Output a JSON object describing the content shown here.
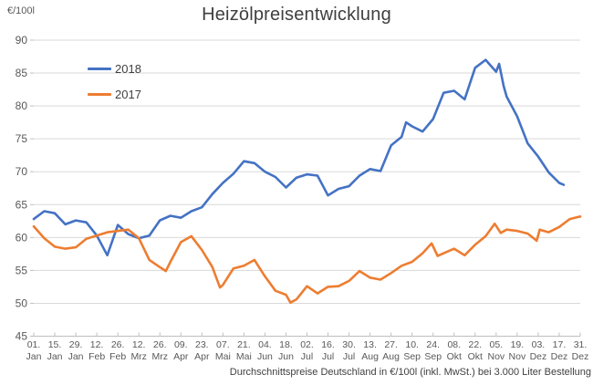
{
  "title": "Heizölpreisentwicklung",
  "axis_unit_label": "€/100l",
  "caption": "Durchschnittspreise Deutschland in €/100l (inkl. MwSt.) bei 3.000 Liter Bestellung",
  "colors": {
    "series_2018": "#4472C4",
    "series_2017": "#ED7D31",
    "grid": "#D9D9D9",
    "axis": "#BFBFBF",
    "tick_text": "#595959",
    "title_text": "#3F3F3F"
  },
  "chart_data": {
    "type": "line",
    "title": "Heizölpreisentwicklung",
    "ylabel": "€/100l",
    "xlabel": "",
    "ylim": [
      45,
      90
    ],
    "y_tick_step": 5,
    "y_tick_labels": [
      "45",
      "50",
      "55",
      "60",
      "65",
      "70",
      "75",
      "80",
      "85",
      "90"
    ],
    "x_domain_days": [
      0,
      364
    ],
    "x_tick_interval_days": 14,
    "x_tick_labels": [
      {
        "day": "01.",
        "month": "Jan"
      },
      {
        "day": "15.",
        "month": "Jan"
      },
      {
        "day": "29.",
        "month": "Jan"
      },
      {
        "day": "12.",
        "month": "Feb"
      },
      {
        "day": "26.",
        "month": "Feb"
      },
      {
        "day": "12.",
        "month": "Mrz"
      },
      {
        "day": "26.",
        "month": "Mrz"
      },
      {
        "day": "09.",
        "month": "Apr"
      },
      {
        "day": "23.",
        "month": "Apr"
      },
      {
        "day": "07.",
        "month": "Mai"
      },
      {
        "day": "21.",
        "month": "Mai"
      },
      {
        "day": "04.",
        "month": "Jun"
      },
      {
        "day": "18.",
        "month": "Jun"
      },
      {
        "day": "02.",
        "month": "Jul"
      },
      {
        "day": "16.",
        "month": "Jul"
      },
      {
        "day": "30.",
        "month": "Jul"
      },
      {
        "day": "13.",
        "month": "Aug"
      },
      {
        "day": "27.",
        "month": "Aug"
      },
      {
        "day": "10.",
        "month": "Sep"
      },
      {
        "day": "24.",
        "month": "Sep"
      },
      {
        "day": "08.",
        "month": "Okt"
      },
      {
        "day": "22.",
        "month": "Okt"
      },
      {
        "day": "05.",
        "month": "Nov"
      },
      {
        "day": "19.",
        "month": "Nov"
      },
      {
        "day": "03.",
        "month": "Dez"
      },
      {
        "day": "17.",
        "month": "Dez"
      },
      {
        "day": "31.",
        "month": "Dez"
      }
    ],
    "grid": true,
    "legend_position": "inside-top-left",
    "series": [
      {
        "name": "2018",
        "color": "#4472C4",
        "points": [
          [
            0,
            62.8
          ],
          [
            7,
            64
          ],
          [
            14,
            63.7
          ],
          [
            21,
            62
          ],
          [
            28,
            62.6
          ],
          [
            35,
            62.3
          ],
          [
            42,
            60.3
          ],
          [
            49,
            57.3
          ],
          [
            56,
            61.9
          ],
          [
            63,
            60.5
          ],
          [
            70,
            59.9
          ],
          [
            77,
            60.3
          ],
          [
            84,
            62.6
          ],
          [
            91,
            63.3
          ],
          [
            98,
            63
          ],
          [
            105,
            64
          ],
          [
            112,
            64.6
          ],
          [
            119,
            66.6
          ],
          [
            126,
            68.3
          ],
          [
            133,
            69.7
          ],
          [
            140,
            71.6
          ],
          [
            147,
            71.3
          ],
          [
            154,
            70
          ],
          [
            161,
            69.2
          ],
          [
            168,
            67.6
          ],
          [
            175,
            69.1
          ],
          [
            182,
            69.6
          ],
          [
            189,
            69.4
          ],
          [
            196,
            66.4
          ],
          [
            203,
            67.4
          ],
          [
            210,
            67.8
          ],
          [
            217,
            69.4
          ],
          [
            224,
            70.4
          ],
          [
            231,
            70.1
          ],
          [
            238,
            74
          ],
          [
            245,
            75.3
          ],
          [
            248,
            77.5
          ],
          [
            252,
            76.9
          ],
          [
            259,
            76.1
          ],
          [
            266,
            78
          ],
          [
            273,
            82
          ],
          [
            280,
            82.3
          ],
          [
            287,
            81
          ],
          [
            294,
            85.8
          ],
          [
            301,
            87
          ],
          [
            308,
            85.2
          ],
          [
            310,
            86.4
          ],
          [
            313,
            83
          ],
          [
            315,
            81.4
          ],
          [
            322,
            78.4
          ],
          [
            329,
            74.3
          ],
          [
            336,
            72.3
          ],
          [
            343,
            69.9
          ],
          [
            350,
            68.3
          ],
          [
            353,
            68
          ]
        ]
      },
      {
        "name": "2017",
        "color": "#ED7D31",
        "points": [
          [
            0,
            61.7
          ],
          [
            7,
            59.9
          ],
          [
            14,
            58.6
          ],
          [
            21,
            58.3
          ],
          [
            28,
            58.5
          ],
          [
            35,
            59.8
          ],
          [
            42,
            60.3
          ],
          [
            49,
            60.8
          ],
          [
            56,
            61
          ],
          [
            63,
            61.2
          ],
          [
            70,
            59.9
          ],
          [
            77,
            56.6
          ],
          [
            84,
            55.5
          ],
          [
            88,
            54.9
          ],
          [
            91,
            56.3
          ],
          [
            98,
            59.3
          ],
          [
            105,
            60.2
          ],
          [
            112,
            58.1
          ],
          [
            119,
            55.5
          ],
          [
            124,
            52.4
          ],
          [
            126,
            52.8
          ],
          [
            133,
            55.3
          ],
          [
            140,
            55.7
          ],
          [
            147,
            56.6
          ],
          [
            154,
            54.1
          ],
          [
            161,
            51.9
          ],
          [
            168,
            51.3
          ],
          [
            171,
            50.1
          ],
          [
            175,
            50.6
          ],
          [
            182,
            52.6
          ],
          [
            189,
            51.5
          ],
          [
            196,
            52.5
          ],
          [
            203,
            52.6
          ],
          [
            210,
            53.4
          ],
          [
            217,
            54.9
          ],
          [
            224,
            53.9
          ],
          [
            231,
            53.6
          ],
          [
            238,
            54.6
          ],
          [
            245,
            55.7
          ],
          [
            252,
            56.3
          ],
          [
            259,
            57.6
          ],
          [
            265,
            59.1
          ],
          [
            269,
            57.2
          ],
          [
            273,
            57.6
          ],
          [
            280,
            58.3
          ],
          [
            287,
            57.3
          ],
          [
            294,
            58.9
          ],
          [
            301,
            60.2
          ],
          [
            307,
            62.1
          ],
          [
            311,
            60.7
          ],
          [
            315,
            61.2
          ],
          [
            322,
            61
          ],
          [
            329,
            60.6
          ],
          [
            335,
            59.5
          ],
          [
            337,
            61.2
          ],
          [
            343,
            60.8
          ],
          [
            350,
            61.6
          ],
          [
            357,
            62.8
          ],
          [
            364,
            63.2
          ]
        ]
      }
    ]
  }
}
